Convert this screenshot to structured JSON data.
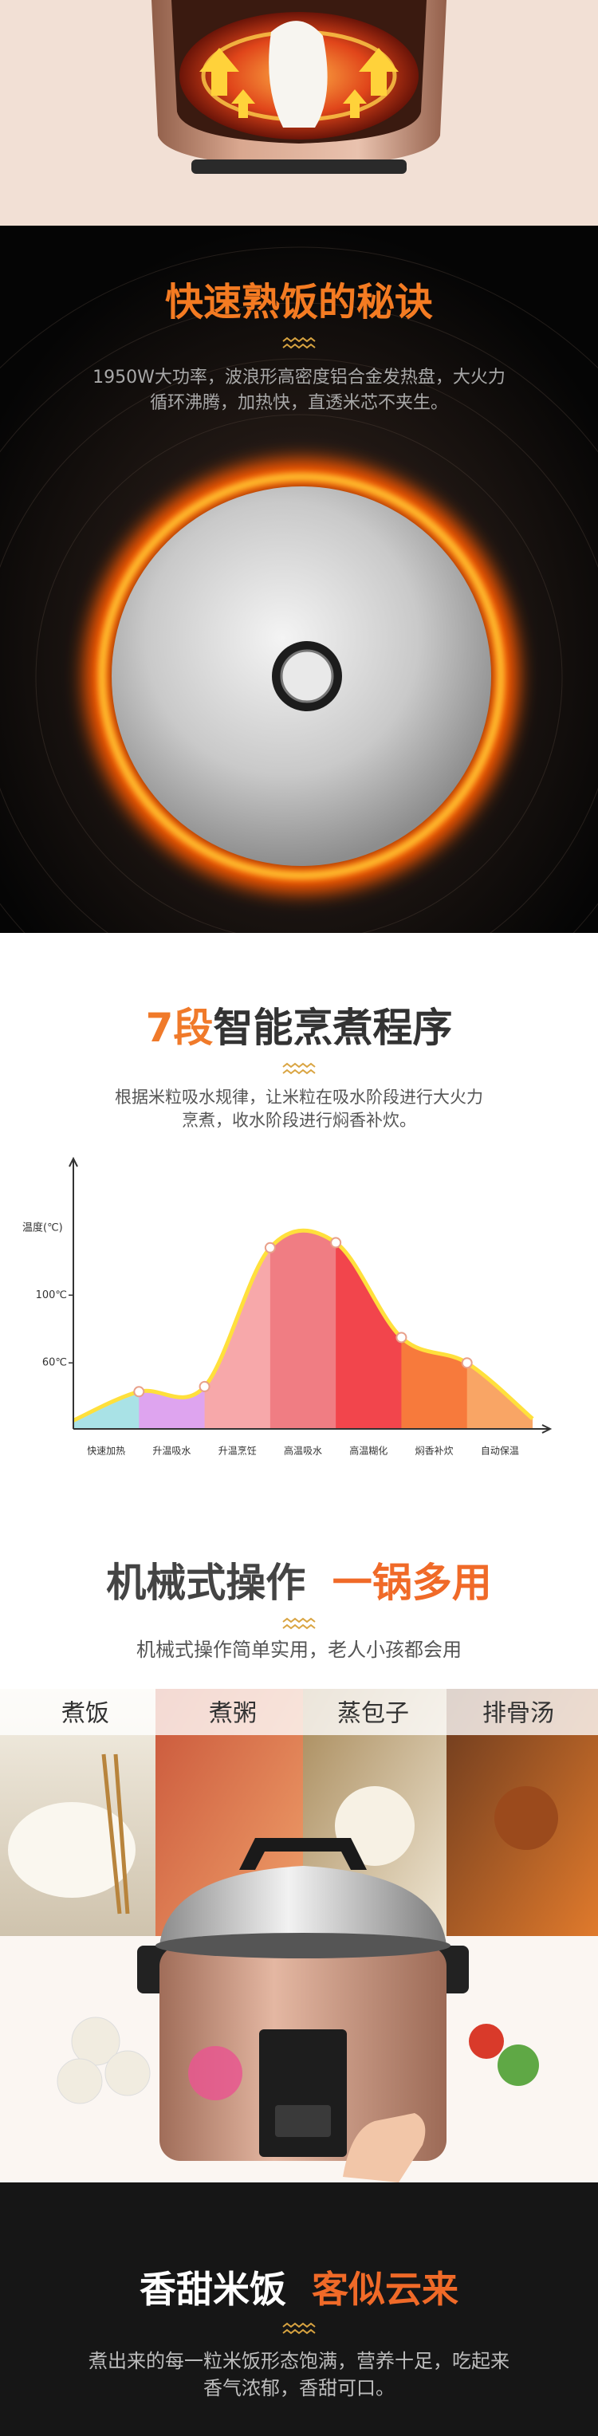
{
  "heat": {
    "title": "快速熟饭的秘诀",
    "lines": [
      "1950W大功率，波浪形高密度铝合金发热盘，大火力",
      "循环沸腾，加热快，直透米芯不夹生。"
    ]
  },
  "program": {
    "title_highlight": "7段",
    "title_rest": "智能烹煮程序",
    "lines": [
      "根据米粒吸水规律，让米粒在吸水阶段进行大火力",
      "烹煮，收水阶段进行焖香补炊。"
    ],
    "chart": {
      "type": "area",
      "ylabel": "温度(℃)",
      "categories": [
        "快速加热",
        "升温吸水",
        "升温烹饪",
        "高温吸水",
        "高温糊化",
        "焖香补炊",
        "自动保温"
      ],
      "colors": [
        "#a9e2e6",
        "#dea4ef",
        "#f7a8aa",
        "#f07d83",
        "#f2454c",
        "#f77a3c",
        "#f9a565"
      ],
      "curve": [
        26,
        43,
        46,
        128,
        131,
        75,
        60,
        27
      ],
      "curve_color": "#ffe03c",
      "ylim": [
        21,
        175
      ],
      "yticks": [
        {
          "value": 60,
          "label": "60℃"
        },
        {
          "value": 100,
          "label": "100℃"
        }
      ]
    }
  },
  "usage": {
    "title_main": "机械式操作",
    "title_highlight": "一锅多用",
    "subtitle": "机械式操作简单实用，老人小孩都会用",
    "panels": [
      "煮饭",
      "煮粥",
      "蒸包子",
      "排骨汤"
    ]
  },
  "rice": {
    "title_main": "香甜米饭",
    "title_highlight": "客似云来",
    "lines": [
      "煮出来的每一粒米饭形态饱满，营养十足，吃起来",
      "香气浓郁，香甜可口。"
    ]
  }
}
